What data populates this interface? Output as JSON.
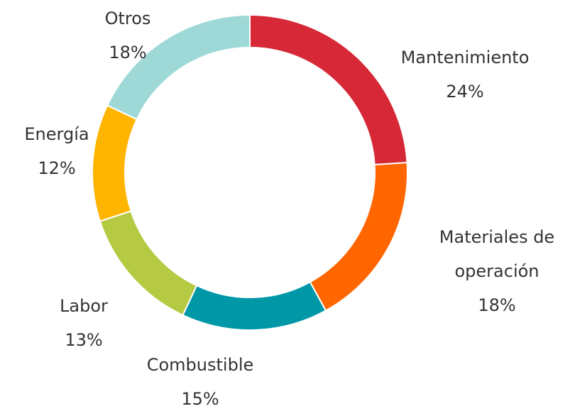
{
  "chart_data": {
    "type": "donut",
    "categories": [
      "Mantenimiento",
      "Materiales de operación",
      "Combustible",
      "Labor",
      "Energía",
      "Otros"
    ],
    "values": [
      24,
      18,
      15,
      13,
      12,
      18
    ],
    "value_labels": [
      "24%",
      "18%",
      "15%",
      "13%",
      "12%",
      "18%"
    ],
    "colors": [
      "#d62836",
      "#ff6600",
      "#0097a7",
      "#b5c942",
      "#ffb400",
      "#9ed9d8"
    ]
  }
}
